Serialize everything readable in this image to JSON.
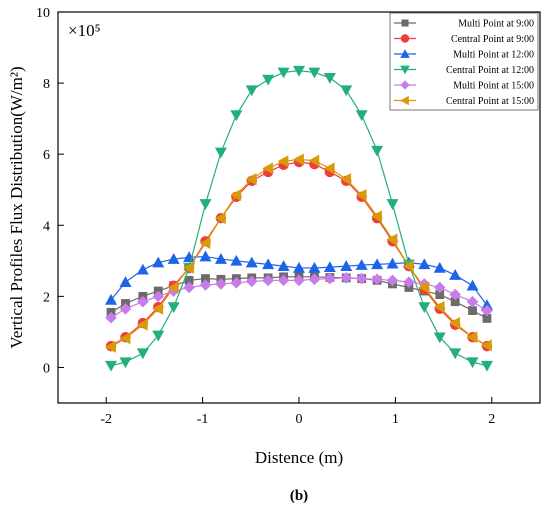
{
  "chart_data": {
    "type": "line",
    "xlabel": "Distence (m)",
    "ylabel": "Vertical Profiles Flux Distribution(W/m²)",
    "y_multiplier": "×10⁵",
    "caption": "(b)",
    "xlim": [
      -2.5,
      2.5
    ],
    "ylim": [
      -1,
      10
    ],
    "xticks": [
      -2,
      -1,
      0,
      1,
      2
    ],
    "yticks": [
      0,
      2,
      4,
      6,
      8,
      10
    ],
    "grid": false,
    "legend_position": "top-right",
    "x": [
      -1.95,
      -1.8,
      -1.62,
      -1.46,
      -1.3,
      -1.14,
      -0.97,
      -0.81,
      -0.65,
      -0.49,
      -0.32,
      -0.16,
      0,
      0.16,
      0.32,
      0.49,
      0.65,
      0.81,
      0.97,
      1.14,
      1.3,
      1.46,
      1.62,
      1.8,
      1.95
    ],
    "series": [
      {
        "name": "Multi Point at 9:00",
        "color": "#6b6b6b",
        "marker": "square",
        "values": [
          1.55,
          1.8,
          2.0,
          2.15,
          2.3,
          2.45,
          2.5,
          2.48,
          2.5,
          2.52,
          2.52,
          2.55,
          2.55,
          2.55,
          2.53,
          2.52,
          2.5,
          2.45,
          2.35,
          2.25,
          2.15,
          2.05,
          1.85,
          1.6,
          1.38
        ]
      },
      {
        "name": "Central Point at 9:00",
        "color": "#f03c3c",
        "marker": "circle",
        "values": [
          0.6,
          0.85,
          1.25,
          1.7,
          2.3,
          2.8,
          3.55,
          4.2,
          4.8,
          5.25,
          5.5,
          5.7,
          5.78,
          5.72,
          5.5,
          5.25,
          4.8,
          4.2,
          3.55,
          2.85,
          2.2,
          1.65,
          1.2,
          0.85,
          0.6
        ]
      },
      {
        "name": "Multi Point at 12:00",
        "color": "#1e64e6",
        "marker": "triangle-up",
        "values": [
          1.9,
          2.4,
          2.75,
          2.95,
          3.05,
          3.1,
          3.12,
          3.05,
          3.0,
          2.95,
          2.9,
          2.85,
          2.8,
          2.8,
          2.82,
          2.85,
          2.88,
          2.9,
          2.92,
          2.95,
          2.9,
          2.8,
          2.6,
          2.3,
          1.75
        ]
      },
      {
        "name": "Central Point at 12:00",
        "color": "#22b07a",
        "marker": "triangle-down",
        "values": [
          0.05,
          0.15,
          0.4,
          0.9,
          1.7,
          2.8,
          4.6,
          6.05,
          7.1,
          7.8,
          8.1,
          8.3,
          8.35,
          8.3,
          8.15,
          7.8,
          7.1,
          6.1,
          4.6,
          2.9,
          1.7,
          0.85,
          0.4,
          0.15,
          0.05
        ]
      },
      {
        "name": "Multi Point at 15:00",
        "color": "#c77ce8",
        "marker": "diamond",
        "values": [
          1.4,
          1.65,
          1.85,
          2.0,
          2.15,
          2.25,
          2.32,
          2.35,
          2.38,
          2.42,
          2.45,
          2.45,
          2.45,
          2.48,
          2.5,
          2.52,
          2.5,
          2.48,
          2.45,
          2.4,
          2.35,
          2.25,
          2.05,
          1.85,
          1.6
        ]
      },
      {
        "name": "Central Point at 15:00",
        "color": "#d99a0a",
        "marker": "triangle-left",
        "values": [
          0.58,
          0.82,
          1.2,
          1.65,
          2.25,
          2.8,
          3.5,
          4.2,
          4.85,
          5.3,
          5.6,
          5.8,
          5.85,
          5.82,
          5.6,
          5.3,
          4.85,
          4.25,
          3.6,
          2.85,
          2.25,
          1.7,
          1.25,
          0.85,
          0.62
        ]
      }
    ]
  }
}
